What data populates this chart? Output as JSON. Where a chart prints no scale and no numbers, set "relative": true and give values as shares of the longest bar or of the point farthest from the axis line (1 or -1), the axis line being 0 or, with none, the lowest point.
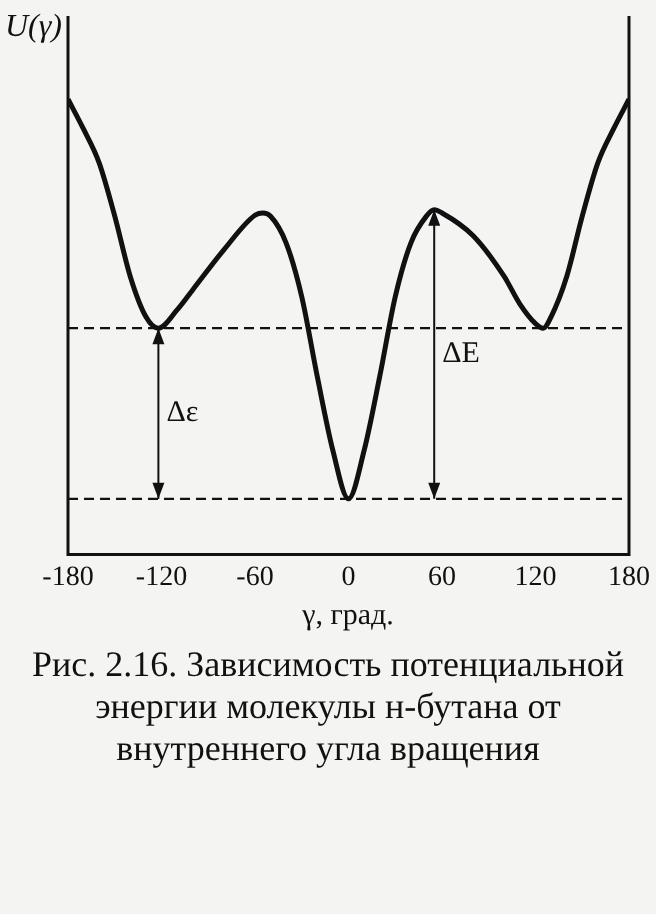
{
  "chart_data": {
    "type": "line",
    "relative": true,
    "title": "Рис. 2.16. Зависимость потенциальной энергии молекулы н-бутана от внутреннего угла вращения",
    "xlabel": "γ, град.",
    "ylabel": "U(γ)",
    "xlim": [
      -180,
      180
    ],
    "xticks": [
      -180,
      -120,
      -60,
      0,
      60,
      120,
      180
    ],
    "grid": false,
    "legend": false,
    "marker": "none",
    "line_style": "solid",
    "x": [
      -180,
      -170,
      -160,
      -150,
      -140,
      -130,
      -122,
      -110,
      -100,
      -80,
      -60,
      -55,
      -50,
      -40,
      -30,
      -20,
      -10,
      0,
      10,
      20,
      30,
      40,
      50,
      55,
      60,
      80,
      100,
      110,
      120,
      125,
      130,
      140,
      150,
      160,
      170,
      180
    ],
    "series": [
      {
        "color": "#111111",
        "values": [
          1,
          0.934,
          0.86,
          0.743,
          0.61,
          0.522,
          0.497,
          0.537,
          0.581,
          0.669,
          0.745,
          0.75,
          0.743,
          0.684,
          0.566,
          0.39,
          0.228,
          0.122,
          0.228,
          0.39,
          0.566,
          0.684,
          0.743,
          0.757,
          0.75,
          0.7,
          0.61,
          0.55,
          0.507,
          0.497,
          0.522,
          0.61,
          0.743,
          0.86,
          0.934,
          1
        ]
      }
    ],
    "ref_lines": [
      {
        "axis": "y",
        "value": 0.497,
        "line_style": "dashed",
        "color": "#111111"
      },
      {
        "axis": "y",
        "value": 0.122,
        "line_style": "dashed",
        "color": "#111111"
      }
    ],
    "annotations": [
      "Δε",
      "ΔE"
    ]
  }
}
